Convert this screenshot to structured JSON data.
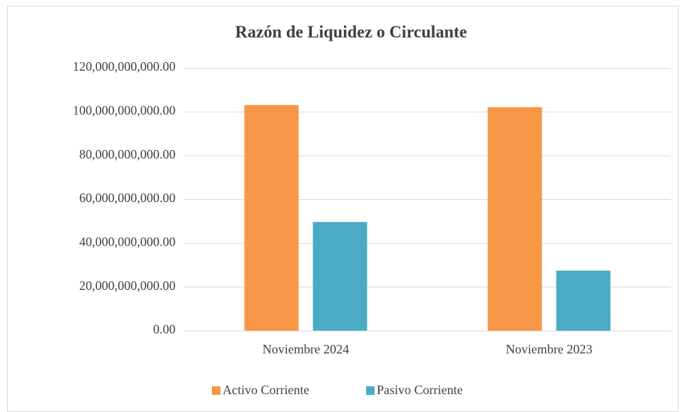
{
  "chart_data": {
    "type": "bar",
    "title": "Razón de Liquidez o Circulante",
    "categories": [
      "Noviembre 2024",
      "Noviembre 2023"
    ],
    "series": [
      {
        "name": "Activo Corriente",
        "color": "#f79646",
        "values": [
          103000000000,
          102000000000
        ]
      },
      {
        "name": "Pasivo Corriente",
        "color": "#4bacc6",
        "values": [
          49600000000,
          27400000000
        ]
      }
    ],
    "ylim": [
      0,
      120000000000
    ],
    "yticks": [
      {
        "value": 0,
        "label": "0.00"
      },
      {
        "value": 20000000000,
        "label": "20,000,000,000.00"
      },
      {
        "value": 40000000000,
        "label": "40,000,000,000.00"
      },
      {
        "value": 60000000000,
        "label": "60,000,000,000.00"
      },
      {
        "value": 80000000000,
        "label": "80,000,000,000.00"
      },
      {
        "value": 100000000000,
        "label": "100,000,000,000.00"
      },
      {
        "value": 120000000000,
        "label": "120,000,000,000.00"
      }
    ],
    "grid": true,
    "legend": "bottom"
  }
}
